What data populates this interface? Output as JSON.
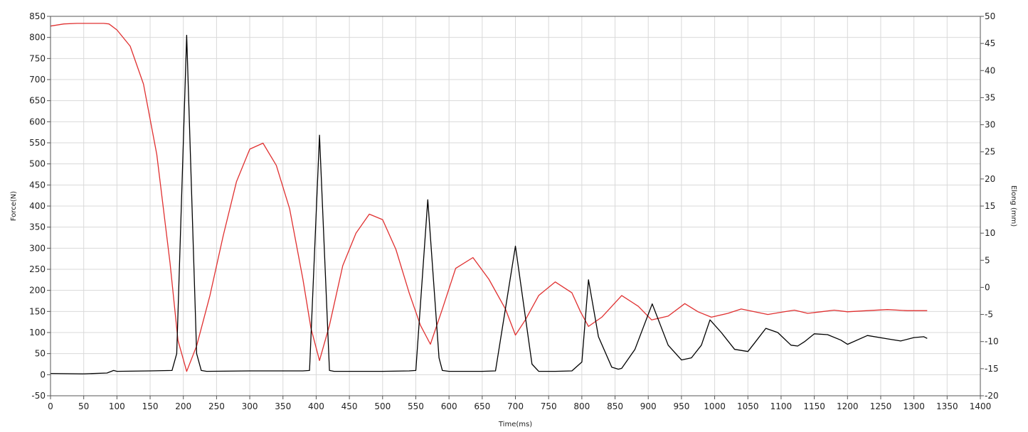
{
  "chart_data": {
    "type": "line",
    "xlabel": "Time(ms)",
    "ylabel_left": "Force(N)",
    "ylabel_right": "Elong (mm)",
    "xlim": [
      0,
      1400
    ],
    "ylim_left": [
      -50,
      850
    ],
    "ylim_right": [
      -20,
      50
    ],
    "x_ticks": [
      "0",
      "50",
      "100",
      "150",
      "200",
      "250",
      "300",
      "350",
      "400",
      "450",
      "500",
      "550",
      "600",
      "650",
      "700",
      "750",
      "800",
      "850",
      "900",
      "950",
      "1000",
      "1050",
      "1100",
      "1150",
      "1200",
      "1250",
      "1300",
      "1350",
      "1400"
    ],
    "y_left_ticks": [
      "-50",
      "0",
      "50",
      "100",
      "150",
      "200",
      "250",
      "300",
      "350",
      "400",
      "450",
      "500",
      "550",
      "600",
      "650",
      "700",
      "750",
      "800",
      "850"
    ],
    "y_right_ticks": [
      "-20",
      "-15",
      "-10",
      "-5",
      "0",
      "5",
      "10",
      "15",
      "20",
      "25",
      "30",
      "35",
      "40",
      "45",
      "50"
    ],
    "grid": true,
    "legend": "none",
    "series": [
      {
        "axis": "left",
        "color": "#000000",
        "x": [
          0,
          50,
          85,
          95,
          100,
          150,
          183,
          190,
          205,
          220,
          227,
          235,
          300,
          380,
          390,
          405,
          420,
          427,
          435,
          500,
          540,
          550,
          568,
          585,
          590,
          600,
          650,
          670,
          700,
          725,
          735,
          760,
          785,
          800,
          810,
          825,
          845,
          855,
          860,
          880,
          906,
          930,
          950,
          965,
          980,
          993,
          1010,
          1030,
          1050,
          1060,
          1077,
          1095,
          1115,
          1125,
          1135,
          1150,
          1170,
          1190,
          1200,
          1230,
          1260,
          1280,
          1300,
          1315,
          1320
        ],
        "y": [
          3,
          2,
          4,
          10,
          8,
          9,
          10,
          50,
          805,
          50,
          10,
          8,
          9,
          9,
          10,
          568,
          10,
          8,
          8,
          8,
          9,
          10,
          415,
          40,
          10,
          8,
          8,
          9,
          305,
          25,
          8,
          8,
          9,
          30,
          225,
          90,
          18,
          13,
          15,
          60,
          168,
          70,
          35,
          40,
          70,
          130,
          100,
          60,
          55,
          75,
          110,
          100,
          70,
          68,
          78,
          97,
          95,
          82,
          72,
          93,
          85,
          80,
          88,
          90,
          86
        ]
      },
      {
        "axis": "right",
        "color": "#e03030",
        "x": [
          0,
          20,
          40,
          60,
          80,
          88,
          100,
          120,
          140,
          160,
          180,
          192,
          205,
          220,
          240,
          260,
          280,
          300,
          320,
          340,
          360,
          380,
          392,
          405,
          420,
          440,
          460,
          480,
          500,
          520,
          540,
          557,
          572,
          590,
          610,
          636,
          660,
          685,
          700,
          715,
          735,
          760,
          785,
          798,
          810,
          830,
          860,
          885,
          905,
          930,
          955,
          975,
          995,
          1020,
          1040,
          1060,
          1080,
          1100,
          1120,
          1140,
          1160,
          1180,
          1200,
          1230,
          1260,
          1290,
          1320
        ],
        "y": [
          48.2,
          48.6,
          48.7,
          48.7,
          48.7,
          48.6,
          47.5,
          44.5,
          37.5,
          24.5,
          4.5,
          -9.8,
          -15.5,
          -10.8,
          -1.5,
          9.5,
          19.5,
          25.5,
          26.6,
          22.5,
          14.5,
          1.5,
          -7.5,
          -13.5,
          -7,
          4,
          10,
          13.5,
          12.5,
          7,
          -1,
          -7,
          -10.5,
          -4,
          3.5,
          5.5,
          1.5,
          -4,
          -8.8,
          -6,
          -1.5,
          1,
          -1,
          -4.5,
          -7.2,
          -5.5,
          -1.5,
          -3.5,
          -6,
          -5.3,
          -3,
          -4.5,
          -5.5,
          -4.8,
          -4,
          -4.5,
          -5,
          -4.6,
          -4.2,
          -4.8,
          -4.5,
          -4.2,
          -4.5,
          -4.3,
          -4.1,
          -4.3,
          -4.3
        ]
      }
    ]
  }
}
